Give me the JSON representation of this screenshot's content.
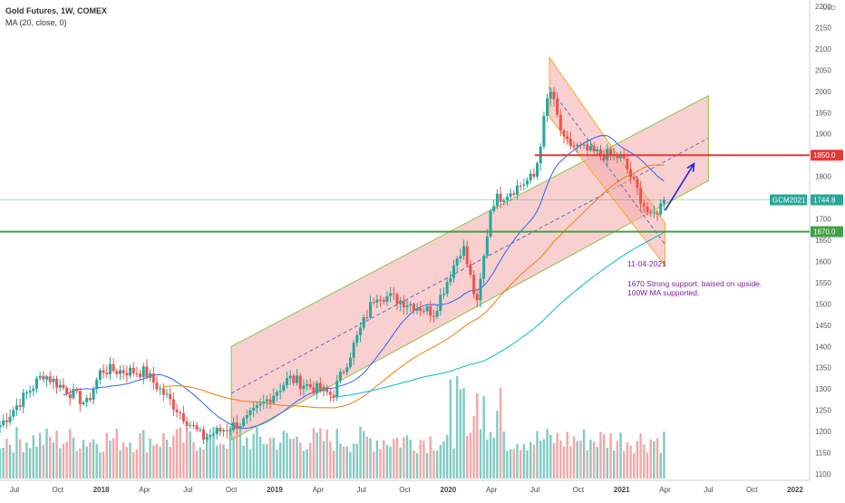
{
  "legend": {
    "title": "Gold Futures, 1W, COMEX",
    "indicator": "MA (20, close, 0)"
  },
  "annotations": {
    "date": "11-04-2021",
    "line1": "1670 Strong support. baised on upside.",
    "line2": "100W MA supported."
  },
  "colors": {
    "up": "#26a69a",
    "down": "#ef5350",
    "vol_up": "#80cbc4",
    "vol_down": "#f4a6a6",
    "channel_fill": "#f4a9a9",
    "ma20": "#2962ff",
    "ma50": "#f57c00",
    "ma100": "#00bcd4",
    "resistance": "#e53935",
    "support": "#43a047",
    "note": "#7b1fa2",
    "price_tag": "#26a69a"
  },
  "chart_data": {
    "type": "candlestick",
    "symbol": "Gold Futures, 1W, COMEX",
    "y_unit": "USD",
    "y_ticks": [
      1100,
      1150,
      1200,
      1250,
      1300,
      1350,
      1400,
      1450,
      1500,
      1550,
      1600,
      1650,
      1700,
      1750,
      1800,
      1850,
      1900,
      1950,
      2000,
      2050,
      2100,
      2150,
      2200
    ],
    "ylim": [
      1085,
      2215
    ],
    "x_ticks": [
      "Jul",
      "Oct",
      "2018",
      "Apr",
      "Jul",
      "Oct",
      "2019",
      "Apr",
      "Jul",
      "Oct",
      "2020",
      "Apr",
      "Jul",
      "Oct",
      "2021",
      "Apr",
      "Jul",
      "Oct",
      "2022"
    ],
    "x_range": [
      "2017-06",
      "2022-02"
    ],
    "price_markers": [
      {
        "label": "1850.0",
        "value": 1850,
        "kind": "resistance"
      },
      {
        "label": "GCM2021",
        "value": 1744.8,
        "kind": "last"
      },
      {
        "label": "1744.8",
        "value": 1744.8,
        "kind": "last"
      },
      {
        "label": "1670.0",
        "value": 1670,
        "kind": "support"
      }
    ],
    "horizontal_lines": [
      {
        "value": 1850,
        "name": "Resistance",
        "start": "2020-07"
      },
      {
        "value": 1670,
        "name": "Support",
        "start": "2017-06"
      }
    ],
    "close_anchors": [
      {
        "date": "2017-06",
        "close": 1215
      },
      {
        "date": "2017-09",
        "close": 1335
      },
      {
        "date": "2017-12",
        "close": 1265
      },
      {
        "date": "2018-01",
        "close": 1345
      },
      {
        "date": "2018-04",
        "close": 1340
      },
      {
        "date": "2018-08",
        "close": 1185
      },
      {
        "date": "2018-11",
        "close": 1225
      },
      {
        "date": "2019-02",
        "close": 1325
      },
      {
        "date": "2019-05",
        "close": 1285
      },
      {
        "date": "2019-08",
        "close": 1525
      },
      {
        "date": "2019-10",
        "close": 1505
      },
      {
        "date": "2019-12",
        "close": 1480
      },
      {
        "date": "2020-02",
        "close": 1640
      },
      {
        "date": "2020-03",
        "close": 1495
      },
      {
        "date": "2020-04",
        "close": 1740
      },
      {
        "date": "2020-07",
        "close": 1800
      },
      {
        "date": "2020-08",
        "close": 2010
      },
      {
        "date": "2020-09",
        "close": 1880
      },
      {
        "date": "2020-11",
        "close": 1855
      },
      {
        "date": "2021-01",
        "close": 1845
      },
      {
        "date": "2021-03",
        "close": 1700
      },
      {
        "date": "2021-04",
        "close": 1744.8
      }
    ],
    "moving_averages": [
      {
        "name": "MA (20, close, 0)",
        "period": 20
      },
      {
        "period": 50
      },
      {
        "period": 100
      }
    ],
    "channels": [
      {
        "kind": "ascending",
        "from": {
          "date": "2018-10",
          "value": 1400
        },
        "to": {
          "date": "2021-07",
          "value": 1990
        },
        "lower_from": 1180,
        "lower_to": 1790
      },
      {
        "kind": "descending",
        "from": {
          "date": "2020-08",
          "value": 2080
        },
        "to": {
          "date": "2021-04",
          "value": 1690
        },
        "lower_from": 1940,
        "lower_to": 1590
      }
    ],
    "projection": {
      "from": {
        "date": "2021-04",
        "value": 1720
      },
      "to": {
        "date": "2021-05",
        "value": 1830
      }
    }
  }
}
